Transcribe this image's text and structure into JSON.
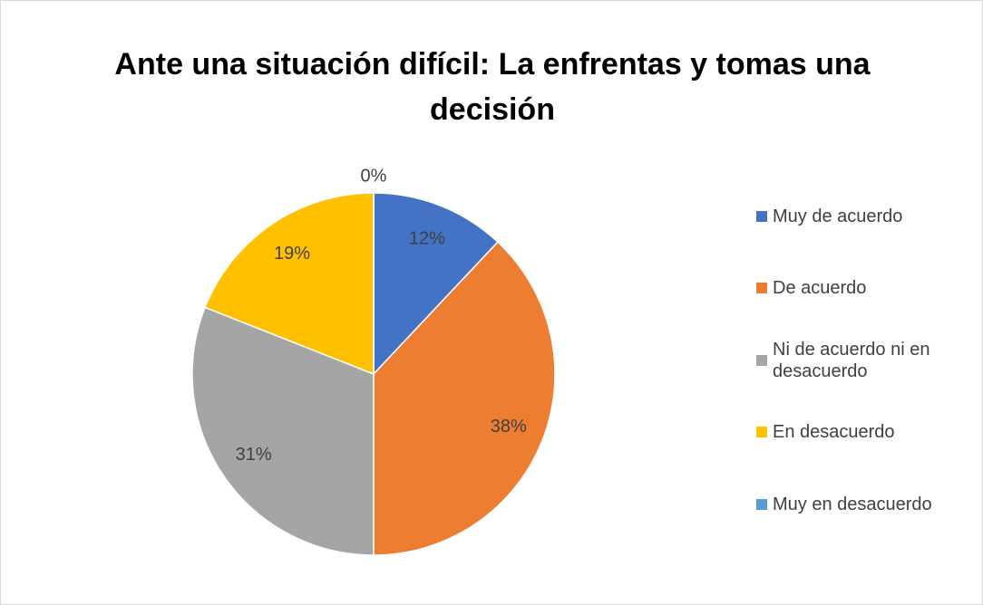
{
  "chart_data": {
    "type": "pie",
    "title": "Ante una situación difícil: La enfrentas y tomas una decisión",
    "categories": [
      "Muy de acuerdo",
      "De acuerdo",
      "Ni de acuerdo ni en desacuerdo",
      "En desacuerdo",
      "Muy en desacuerdo"
    ],
    "values": [
      12,
      38,
      31,
      19,
      0
    ],
    "value_labels": [
      "12%",
      "38%",
      "31%",
      "19%",
      "0%"
    ],
    "colors": [
      "#4472c4",
      "#ed7d31",
      "#a5a5a5",
      "#ffc000",
      "#5b9bd5"
    ],
    "legend": "right"
  }
}
